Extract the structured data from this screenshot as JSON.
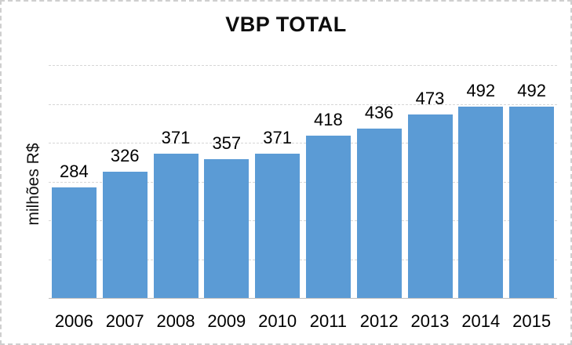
{
  "window": {
    "background_color": "#ffffff",
    "border_color": "#cfcfcf"
  },
  "chart_data": {
    "type": "bar",
    "title": "VBP TOTAL",
    "ylabel": "milhões R$",
    "xlabel": "",
    "categories": [
      "2006",
      "2007",
      "2008",
      "2009",
      "2010",
      "2011",
      "2012",
      "2013",
      "2014",
      "2015"
    ],
    "values": [
      284,
      326,
      371,
      357,
      371,
      418,
      436,
      473,
      492,
      492
    ],
    "data_labels": [
      284,
      326,
      371,
      357,
      371,
      418,
      436,
      473,
      492,
      492
    ],
    "data_label_position": "outside-end",
    "ylim": [
      0,
      600
    ],
    "gridline_step": 100,
    "grid": true,
    "legend": "none",
    "y_tick_labels_visible": false,
    "bar_color": "#5B9BD5",
    "gridline_color": "#d6d6d6",
    "axis_line_color": "#bfbfbf",
    "text_color": "#000000"
  }
}
